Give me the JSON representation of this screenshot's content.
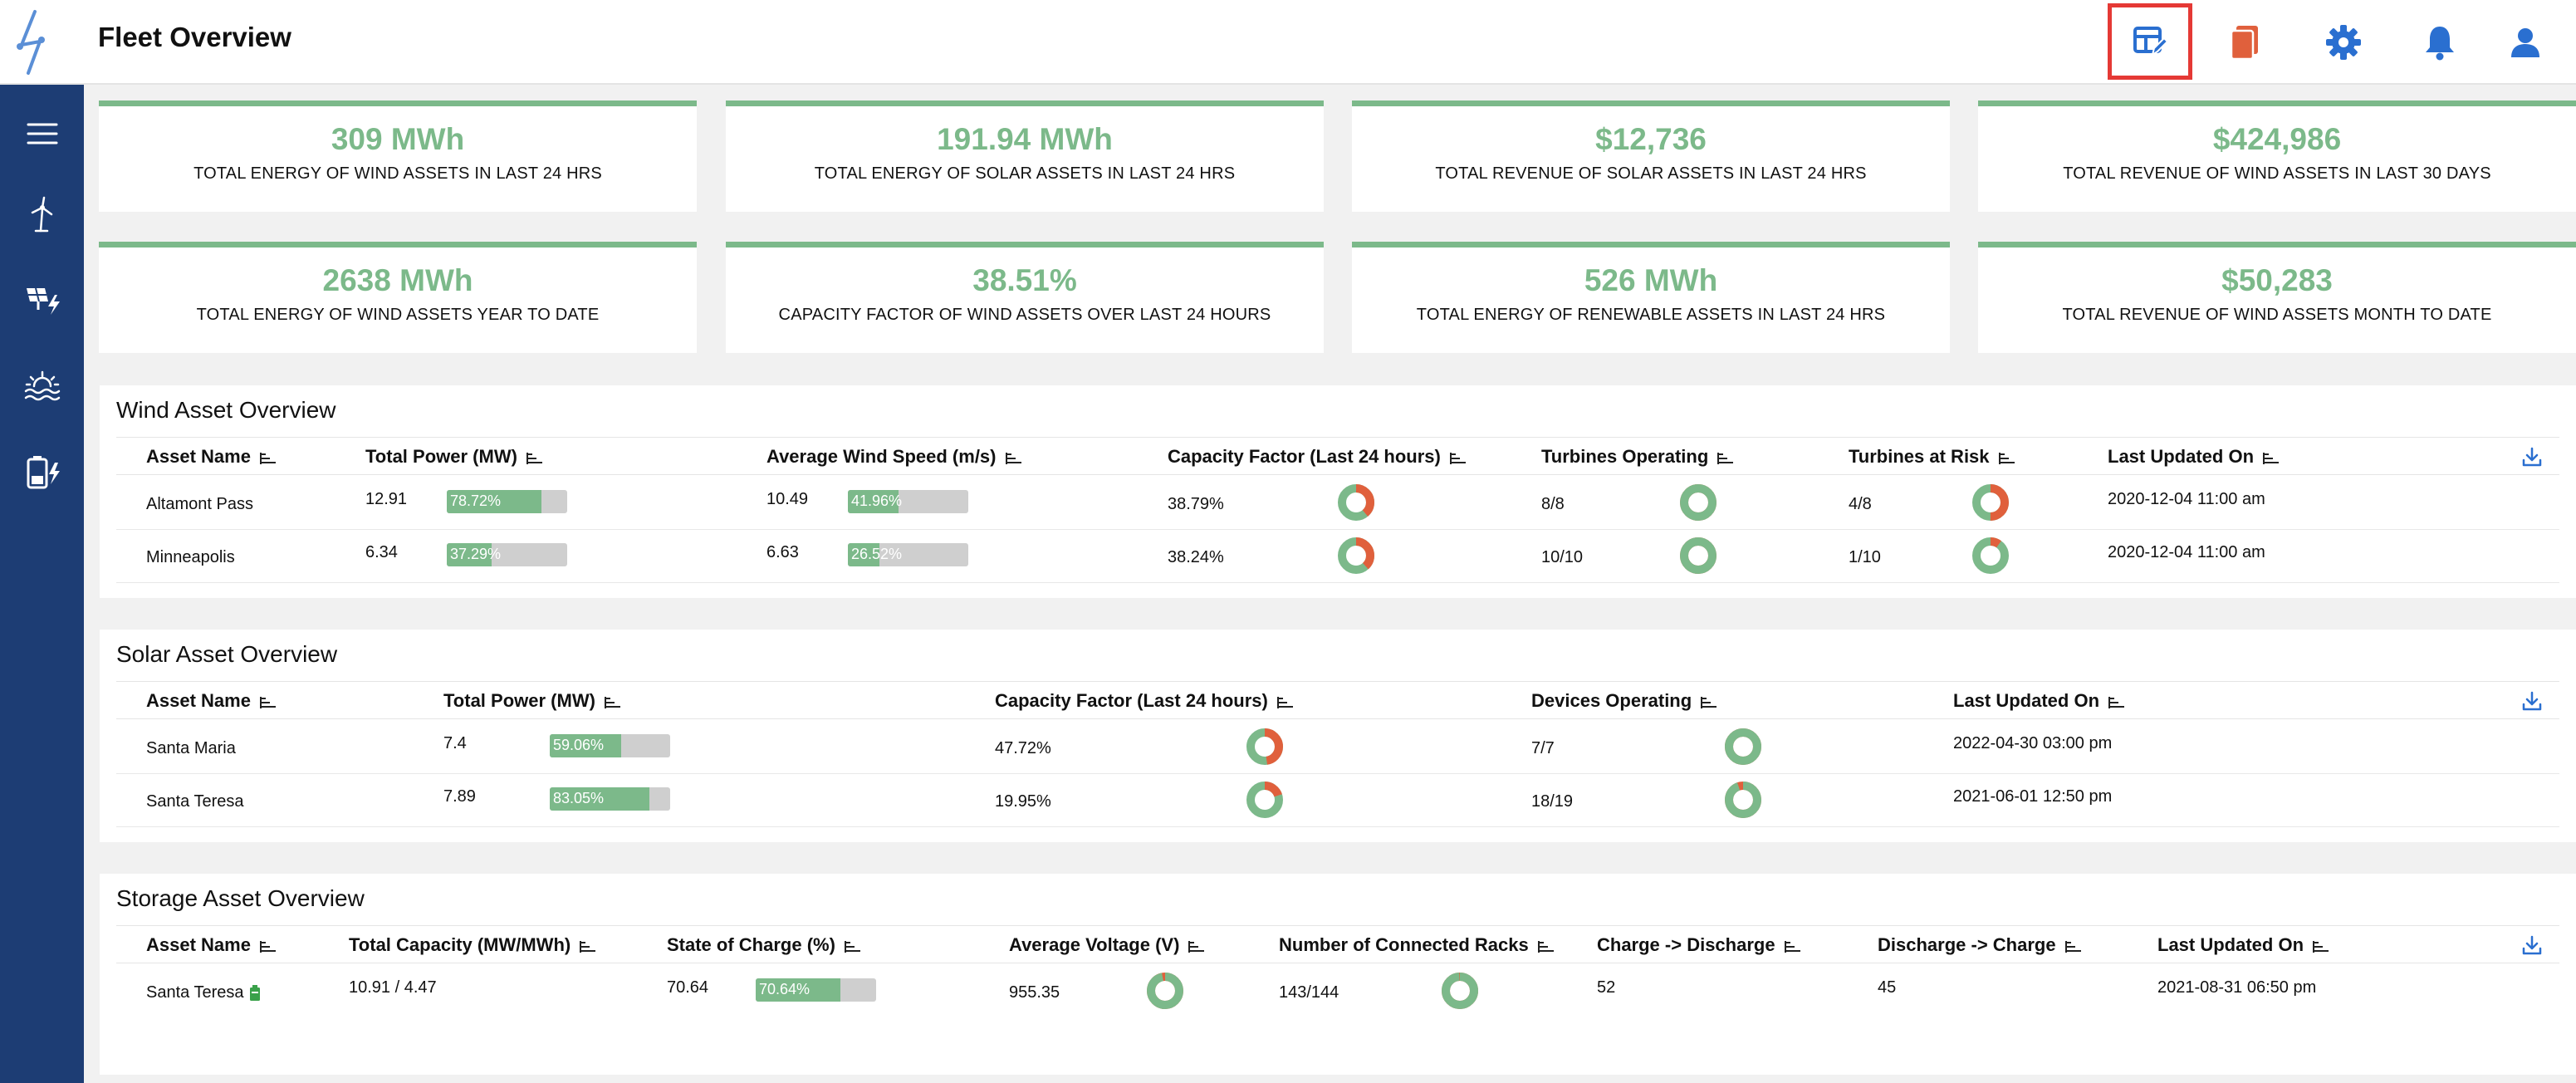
{
  "header": {
    "title": "Fleet Overview",
    "icons": [
      "dashboard-edit-icon",
      "reports-icon",
      "gear-icon",
      "bell-icon",
      "user-icon"
    ]
  },
  "colors": {
    "green": "#7cb98a",
    "orange": "#e0603c",
    "blue": "#2a6fd0",
    "navy": "#1d3d74",
    "red": "#e53935"
  },
  "sidebar": {
    "items": [
      "menu-icon",
      "wind-turbine-icon",
      "solar-panel-icon",
      "sun-water-icon",
      "battery-icon"
    ]
  },
  "kpis": [
    {
      "value": "309 MWh",
      "label": "TOTAL ENERGY OF WIND ASSETS IN LAST 24 HRS"
    },
    {
      "value": "191.94 MWh",
      "label": "TOTAL ENERGY OF SOLAR ASSETS IN LAST 24 HRS"
    },
    {
      "value": "$12,736",
      "label": "TOTAL REVENUE OF SOLAR ASSETS IN LAST 24 HRS"
    },
    {
      "value": "$424,986",
      "label": "TOTAL REVENUE OF WIND ASSETS IN LAST 30 DAYS"
    },
    {
      "value": "2638 MWh",
      "label": "TOTAL ENERGY OF WIND ASSETS YEAR TO DATE"
    },
    {
      "value": "38.51%",
      "label": "CAPACITY FACTOR OF WIND ASSETS OVER LAST 24 HOURS"
    },
    {
      "value": "526 MWh",
      "label": "TOTAL ENERGY OF RENEWABLE ASSETS IN LAST 24 HRS"
    },
    {
      "value": "$50,283",
      "label": "TOTAL REVENUE OF WIND ASSETS MONTH TO DATE"
    }
  ],
  "wind": {
    "title": "Wind Asset Overview",
    "headers": [
      "Asset Name",
      "Total Power (MW)",
      "Average Wind Speed (m/s)",
      "Capacity Factor (Last 24 hours)",
      "Turbines Operating",
      "Turbines at Risk",
      "Last Updated On"
    ],
    "rows": [
      {
        "name": "Altamont Pass",
        "power": "12.91",
        "power_pct": "78.72%",
        "power_frac": 0.7872,
        "speed": "10.49",
        "speed_pct": "41.96%",
        "speed_frac": 0.4196,
        "cf": "38.79%",
        "cf_frac": 0.3879,
        "turbines_op": "8/8",
        "op_frac": 1.0,
        "turbines_risk": "4/8",
        "risk_frac": 0.5,
        "updated": "2020-12-04 11:00 am"
      },
      {
        "name": "Minneapolis",
        "power": "6.34",
        "power_pct": "37.29%",
        "power_frac": 0.3729,
        "speed": "6.63",
        "speed_pct": "26.52%",
        "speed_frac": 0.2652,
        "cf": "38.24%",
        "cf_frac": 0.3824,
        "turbines_op": "10/10",
        "op_frac": 1.0,
        "turbines_risk": "1/10",
        "risk_frac": 0.1,
        "updated": "2020-12-04 11:00 am"
      }
    ]
  },
  "solar": {
    "title": "Solar Asset Overview",
    "headers": [
      "Asset Name",
      "Total Power (MW)",
      "Capacity Factor (Last 24 hours)",
      "Devices Operating",
      "Last Updated On"
    ],
    "rows": [
      {
        "name": "Santa Maria",
        "power": "7.4",
        "power_pct": "59.06%",
        "power_frac": 0.5906,
        "cf": "47.72%",
        "cf_frac": 0.4772,
        "devices": "7/7",
        "dev_frac": 1.0,
        "updated": "2022-04-30 03:00 pm"
      },
      {
        "name": "Santa Teresa",
        "power": "7.89",
        "power_pct": "83.05%",
        "power_frac": 0.8305,
        "cf": "19.95%",
        "cf_frac": 0.1995,
        "devices": "18/19",
        "dev_frac": 0.947,
        "updated": "2021-06-01 12:50 pm"
      }
    ]
  },
  "storage": {
    "title": "Storage Asset Overview",
    "headers": [
      "Asset Name",
      "Total Capacity (MW/MWh)",
      "State of Charge (%)",
      "Average Voltage (V)",
      "Number of Connected Racks",
      "Charge -> Discharge",
      "Discharge -> Charge",
      "Last Updated On"
    ],
    "rows": [
      {
        "name": "Santa Teresa",
        "capacity": "10.91 / 4.47",
        "soc": "70.64",
        "soc_pct": "70.64%",
        "soc_frac": 0.7064,
        "voltage": "955.35",
        "volt_frac": 0.97,
        "racks": "143/144",
        "racks_frac": 0.993,
        "c2d": "52",
        "d2c": "45",
        "updated": "2021-08-31 06:50 pm"
      }
    ]
  }
}
